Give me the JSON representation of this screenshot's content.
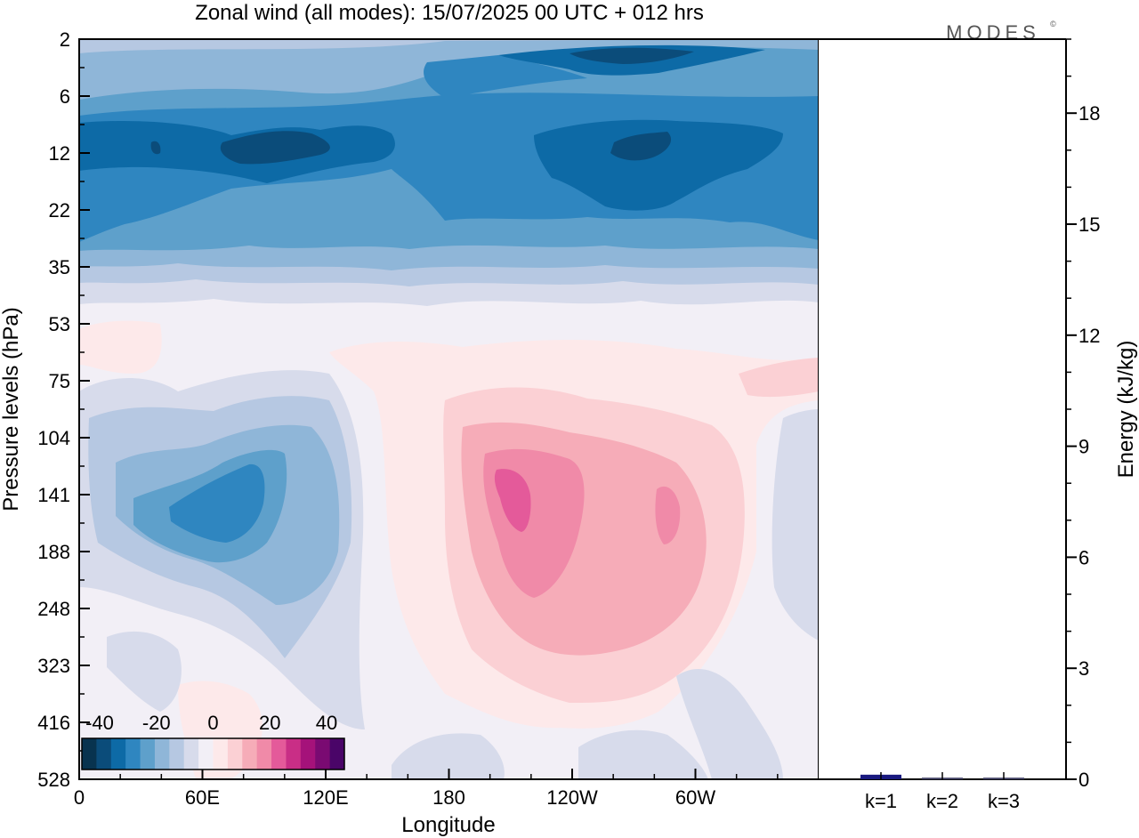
{
  "title": "Zonal wind (all modes):  15/07/2025  00 UTC  + 012 hrs",
  "logo": "MODES",
  "logo_mark": "©",
  "chart_data": [
    {
      "type": "heatmap",
      "description": "Longitude-pressure cross-section of zonal wind (m/s)",
      "xlabel": "Longitude",
      "ylabel": "Pressure levels (hPa)",
      "x_ticks": [
        "0",
        "60E",
        "120E",
        "180",
        "120W",
        "60W"
      ],
      "x_tick_degrees": [
        0,
        60,
        120,
        180,
        240,
        300
      ],
      "xlim": [
        0,
        360
      ],
      "y_ticks": [
        "2",
        "6",
        "12",
        "22",
        "35",
        "53",
        "75",
        "104",
        "141",
        "188",
        "248",
        "323",
        "416",
        "528"
      ],
      "y_scale": "level index (top = 2 hPa, bottom = 528 hPa)",
      "features": [
        {
          "name": "easterly stratospheric band",
          "pressure_range_hPa": [
            2,
            40
          ],
          "value_range": [
            -40,
            -10
          ]
        },
        {
          "name": "westerly jet core",
          "longitude": "150W-160W",
          "pressure_hPa": 141,
          "value": 25
        },
        {
          "name": "easterly core",
          "longitude": "50E-60E",
          "pressure_hPa": 141,
          "value": -25
        }
      ],
      "colorbar": {
        "tick_labels": [
          "-40",
          "-20",
          "0",
          "20",
          "40"
        ],
        "colors": [
          "#08334f",
          "#0b4c7a",
          "#0d6aa6",
          "#2f86c0",
          "#5ea0cb",
          "#8fb6d8",
          "#b6c8e2",
          "#d7dbeb",
          "#f2eff6",
          "#fde9ea",
          "#fbd0d4",
          "#f6acb8",
          "#f08aa8",
          "#e45a9a",
          "#c92e86",
          "#a5127a",
          "#7a0a72",
          "#4a0568"
        ]
      }
    },
    {
      "type": "bar",
      "ylabel": "Energy (kJ/kg)",
      "categories": [
        "k=1",
        "k=2",
        "k=3"
      ],
      "values": [
        0.1,
        0.02,
        0.02
      ],
      "ylim": [
        0,
        20
      ],
      "y_ticks": [
        "0",
        "3",
        "6",
        "9",
        "12",
        "15",
        "18"
      ],
      "y_tick_values": [
        0,
        3,
        6,
        9,
        12,
        15,
        18
      ]
    }
  ]
}
